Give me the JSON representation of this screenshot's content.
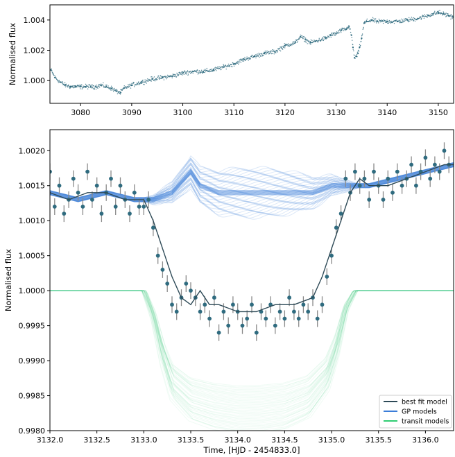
{
  "chart_data": [
    {
      "type": "scatter",
      "ylabel": "Normalised flux",
      "xlabel": "",
      "xlim": [
        3074,
        3153
      ],
      "ylim": [
        0.9985,
        1.005
      ],
      "xticks": [
        3080,
        3090,
        3100,
        3110,
        3120,
        3130,
        3140,
        3150
      ],
      "yticks": [
        1.0,
        1.002,
        1.004
      ],
      "xtick_labels": [
        "3080",
        "3090",
        "3100",
        "3110",
        "3120",
        "3130",
        "3140",
        "3150"
      ],
      "ytick_labels": [
        "1.000",
        "1.002",
        "1.004"
      ],
      "grid": false,
      "series": [
        {
          "color": "#2f6b7f",
          "x": [
            3074.2,
            3075,
            3076,
            3077,
            3078,
            3079,
            3080,
            3081,
            3082,
            3083,
            3084,
            3085,
            3086,
            3087,
            3087.8,
            3088.5,
            3090,
            3092,
            3094,
            3096,
            3098,
            3100,
            3102,
            3104,
            3106,
            3108,
            3110,
            3112,
            3114,
            3116,
            3118,
            3120,
            3122,
            3123,
            3124,
            3125,
            3126,
            3128,
            3129,
            3130,
            3131,
            3132,
            3132.5,
            3133,
            3133.3,
            3133.6,
            3134,
            3134.3,
            3134.6,
            3135,
            3135.5,
            3136,
            3137,
            3138,
            3140,
            3142,
            3144,
            3146,
            3148,
            3149,
            3150,
            3151,
            3152,
            3152.8
          ],
          "y": [
            1.0007,
            1.0002,
            0.9999,
            0.9997,
            0.9996,
            0.9996,
            0.9996,
            0.9996,
            0.9996,
            0.9996,
            0.9997,
            0.9996,
            0.9995,
            0.9993,
            0.9992,
            0.9995,
            0.9997,
            0.9999,
            1.0001,
            1.0002,
            1.0003,
            1.0005,
            1.0006,
            1.0006,
            1.0007,
            1.0009,
            1.0011,
            1.0014,
            1.0016,
            1.0018,
            1.0019,
            1.0023,
            1.0025,
            1.0029,
            1.0027,
            1.0025,
            1.0026,
            1.0028,
            1.003,
            1.0031,
            1.0033,
            1.0034,
            1.0036,
            1.003,
            1.0022,
            1.0015,
            1.0016,
            1.0018,
            1.0022,
            1.0028,
            1.0038,
            1.0039,
            1.004,
            1.0039,
            1.0039,
            1.0039,
            1.004,
            1.0041,
            1.0043,
            1.0044,
            1.0045,
            1.0044,
            1.0043,
            1.0042
          ]
        }
      ]
    },
    {
      "type": "line",
      "xlabel": "Time, [HJD - 2454833.0]",
      "ylabel": "Normalised flux",
      "xlim": [
        3132.0,
        3136.3
      ],
      "ylim": [
        0.998,
        1.0023
      ],
      "xticks": [
        3132.0,
        3132.5,
        3133.0,
        3133.5,
        3134.0,
        3134.5,
        3135.0,
        3135.5,
        3136.0
      ],
      "yticks": [
        0.998,
        0.9985,
        0.999,
        0.9995,
        1.0,
        1.0005,
        1.001,
        1.0015,
        1.002
      ],
      "xtick_labels": [
        "3132.0",
        "3132.5",
        "3133.0",
        "3133.5",
        "3134.0",
        "3134.5",
        "3135.0",
        "3135.5",
        "3136.0"
      ],
      "ytick_labels": [
        "0.9980",
        "0.9985",
        "0.9990",
        "0.9995",
        "1.0000",
        "1.0005",
        "1.0010",
        "1.0015",
        "1.0020"
      ],
      "grid": false,
      "legend_position": "lower-right",
      "legend": [
        {
          "label": "best fit model",
          "color": "#2e4a57"
        },
        {
          "label": "GP models",
          "color": "#3b7dd8"
        },
        {
          "label": "transit models",
          "color": "#2ecc71"
        }
      ],
      "series": [
        {
          "name": "best fit model",
          "color": "#2e4a57",
          "x": [
            3132.0,
            3132.2,
            3132.4,
            3132.6,
            3132.8,
            3133.0,
            3133.1,
            3133.2,
            3133.3,
            3133.4,
            3133.5,
            3133.6,
            3133.7,
            3133.8,
            3134.0,
            3134.2,
            3134.4,
            3134.6,
            3134.8,
            3134.9,
            3135.0,
            3135.1,
            3135.2,
            3135.3,
            3135.4,
            3135.6,
            3135.8,
            3136.0,
            3136.2,
            3136.3
          ],
          "y": [
            1.0014,
            1.0013,
            1.0014,
            1.0014,
            1.0013,
            1.0013,
            1.001,
            1.0006,
            1.0002,
            0.9999,
            0.9998,
            1.0,
            0.9998,
            0.9998,
            0.9997,
            0.9997,
            0.9998,
            0.9998,
            0.9999,
            1.0002,
            1.0006,
            1.001,
            1.0014,
            1.0016,
            1.0015,
            1.0015,
            1.0016,
            1.0017,
            1.0018,
            1.0018
          ]
        },
        {
          "name": "GP models",
          "color": "#3b7dd8",
          "x": [
            3132.0,
            3132.3,
            3132.6,
            3132.9,
            3133.1,
            3133.3,
            3133.5,
            3133.6,
            3133.8,
            3134.0,
            3134.2,
            3134.5,
            3134.8,
            3135.0,
            3135.2,
            3135.4,
            3135.7,
            3136.0,
            3136.3
          ],
          "y": [
            1.0014,
            1.0013,
            1.0014,
            1.0013,
            1.0013,
            1.0014,
            1.0017,
            1.0015,
            1.0014,
            1.0014,
            1.0014,
            1.0014,
            1.0014,
            1.0015,
            1.0015,
            1.0015,
            1.0016,
            1.0017,
            1.0018
          ]
        },
        {
          "name": "transit models",
          "color": "#2ecc71",
          "x": [
            3132.0,
            3133.0,
            3133.1,
            3133.2,
            3133.3,
            3133.5,
            3133.75,
            3134.0,
            3134.25,
            3134.5,
            3134.75,
            3134.95,
            3135.05,
            3135.15,
            3135.25,
            3136.3
          ],
          "y": [
            1.0,
            1.0,
            0.99965,
            0.9991,
            0.9987,
            0.99845,
            0.99835,
            0.9983,
            0.99831,
            0.99835,
            0.99848,
            0.9988,
            0.9992,
            0.99975,
            1.0,
            1.0
          ]
        }
      ],
      "observed": {
        "color": "#2f6b7f",
        "error_color": "#8a8a8a",
        "x": [
          3132.0,
          3132.05,
          3132.1,
          3132.15,
          3132.2,
          3132.25,
          3132.3,
          3132.35,
          3132.4,
          3132.45,
          3132.5,
          3132.55,
          3132.6,
          3132.65,
          3132.7,
          3132.75,
          3132.8,
          3132.85,
          3132.9,
          3132.95,
          3133.0,
          3133.05,
          3133.1,
          3133.15,
          3133.2,
          3133.25,
          3133.3,
          3133.35,
          3133.4,
          3133.45,
          3133.5,
          3133.55,
          3133.6,
          3133.65,
          3133.7,
          3133.75,
          3133.8,
          3133.85,
          3133.9,
          3133.95,
          3134.0,
          3134.05,
          3134.1,
          3134.15,
          3134.2,
          3134.25,
          3134.3,
          3134.35,
          3134.4,
          3134.45,
          3134.5,
          3134.55,
          3134.6,
          3134.65,
          3134.7,
          3134.75,
          3134.8,
          3134.85,
          3134.9,
          3134.95,
          3135.0,
          3135.05,
          3135.1,
          3135.15,
          3135.2,
          3135.25,
          3135.3,
          3135.35,
          3135.4,
          3135.45,
          3135.5,
          3135.55,
          3135.6,
          3135.65,
          3135.7,
          3135.75,
          3135.8,
          3135.85,
          3135.9,
          3135.95,
          3136.0,
          3136.05,
          3136.1,
          3136.15,
          3136.2,
          3136.25
        ],
        "y": [
          1.0017,
          1.0012,
          1.0015,
          1.0011,
          1.0013,
          1.0016,
          1.0014,
          1.0012,
          1.0017,
          1.0013,
          1.0015,
          1.0011,
          1.0014,
          1.0016,
          1.0012,
          1.0015,
          1.0013,
          1.0011,
          1.0014,
          1.0012,
          1.0012,
          1.0013,
          1.0009,
          1.0005,
          1.0003,
          1.0001,
          0.9998,
          0.9997,
          0.9999,
          1.0001,
          1.0,
          0.9999,
          0.9997,
          0.9998,
          0.9996,
          0.9999,
          0.9994,
          0.9997,
          0.9995,
          0.9998,
          0.9997,
          0.9995,
          0.9996,
          0.9998,
          0.9994,
          0.9997,
          0.9996,
          0.9998,
          0.9995,
          0.9997,
          0.9996,
          0.9999,
          0.9997,
          0.9996,
          0.9998,
          0.9997,
          0.9999,
          0.9996,
          0.9998,
          1.0002,
          1.0005,
          1.0009,
          1.0011,
          1.0016,
          1.0014,
          1.0017,
          1.0015,
          1.0016,
          1.0013,
          1.0017,
          1.0015,
          1.0013,
          1.0016,
          1.0014,
          1.0017,
          1.0015,
          1.0016,
          1.0018,
          1.0015,
          1.0017,
          1.0019,
          1.0016,
          1.0018,
          1.0017,
          1.002,
          1.0018
        ]
      }
    }
  ]
}
